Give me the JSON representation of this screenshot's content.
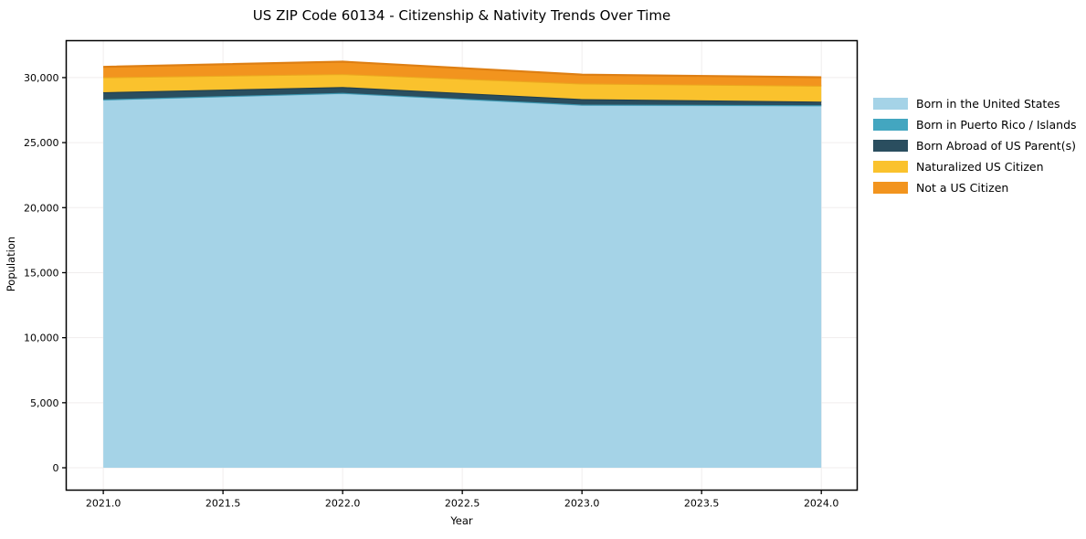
{
  "title": "US ZIP Code 60134 - Citizenship & Nativity Trends Over Time",
  "chart_data": {
    "type": "area",
    "stacked": true,
    "title": "US ZIP Code 60134 - Citizenship & Nativity Trends Over Time",
    "xlabel": "Year",
    "ylabel": "Population",
    "x": [
      2021,
      2022,
      2023,
      2024
    ],
    "series": [
      {
        "name": "Born in the United States",
        "color": "#A5D3E7",
        "edge": "#8BC4DC",
        "values": [
          28300,
          28800,
          27900,
          27850
        ]
      },
      {
        "name": "Born in Puerto Rico / Islands",
        "color": "#43A6C0",
        "edge": "#3A95AE",
        "values": [
          25,
          25,
          25,
          25
        ]
      },
      {
        "name": "Born Abroad of US Parent(s)",
        "color": "#2A4E5F",
        "edge": "#213E4C",
        "values": [
          550,
          450,
          420,
          280
        ]
      },
      {
        "name": "Naturalized US Citizen",
        "color": "#FAC22D",
        "edge": "#ECA81F",
        "values": [
          1150,
          1000,
          1200,
          1220
        ]
      },
      {
        "name": "Not a US Citizen",
        "color": "#F2941E",
        "edge": "#DE7F13",
        "values": [
          800,
          950,
          680,
          650
        ]
      }
    ],
    "totals": [
      30825,
      31225,
      30225,
      30025
    ],
    "xlim": [
      2020.845,
      2024.15
    ],
    "ylim": [
      -1720,
      32840
    ],
    "xticks": [
      2021.0,
      2021.5,
      2022.0,
      2022.5,
      2023.0,
      2023.5,
      2024.0
    ],
    "xtick_labels": [
      "2021.0",
      "2021.5",
      "2022.0",
      "2022.5",
      "2023.0",
      "2023.5",
      "2024.0"
    ],
    "yticks": [
      0,
      5000,
      10000,
      15000,
      20000,
      25000,
      30000
    ],
    "ytick_labels": [
      "0",
      "5,000",
      "10,000",
      "15,000",
      "20,000",
      "25,000",
      "30,000"
    ],
    "grid": true,
    "grid_color": "#f0eded",
    "frame_color": "#000000",
    "legend_position": "right-outside"
  }
}
